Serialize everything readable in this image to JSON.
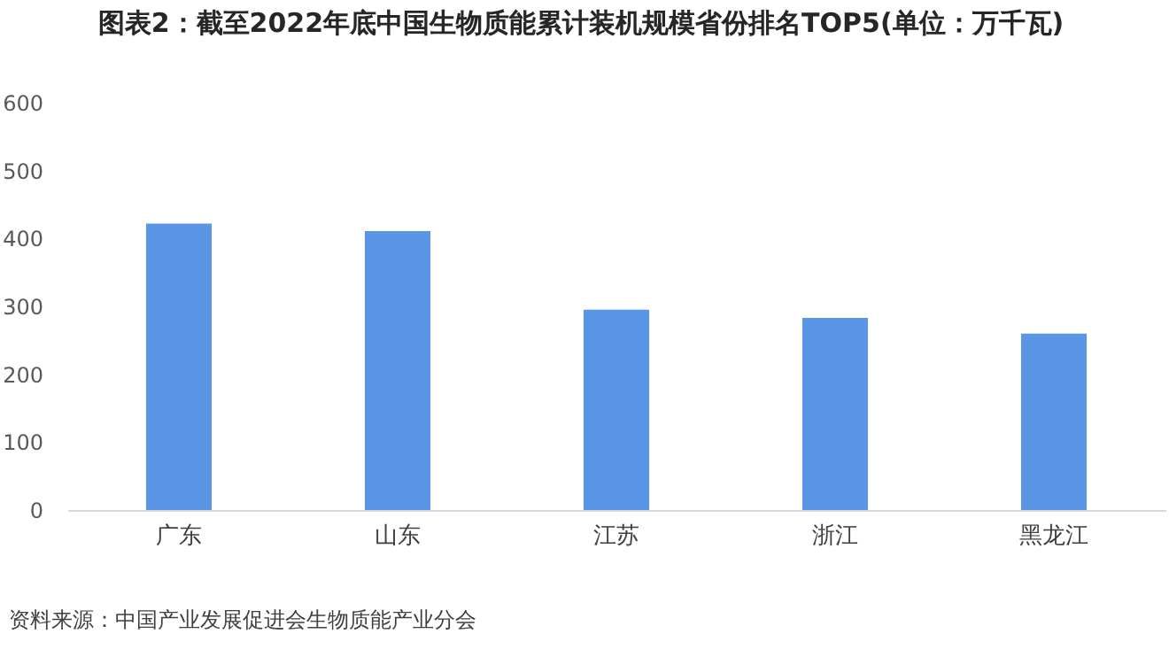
{
  "chart_data": {
    "type": "bar",
    "title": "图表2：截至2022年底中国生物质能累计装机规模省份排名TOP5(单位：万千瓦)",
    "categories": [
      "广东",
      "山东",
      "江苏",
      "浙江",
      "黑龙江"
    ],
    "values": [
      422,
      411,
      295,
      283,
      260
    ],
    "color": "#5b95e5",
    "ylim": [
      0,
      600
    ],
    "yticks": [
      0,
      100,
      200,
      300,
      400,
      500,
      600
    ],
    "annotations": [
      "资料来源：中国产业发展促进会生物质能产业分会"
    ]
  }
}
